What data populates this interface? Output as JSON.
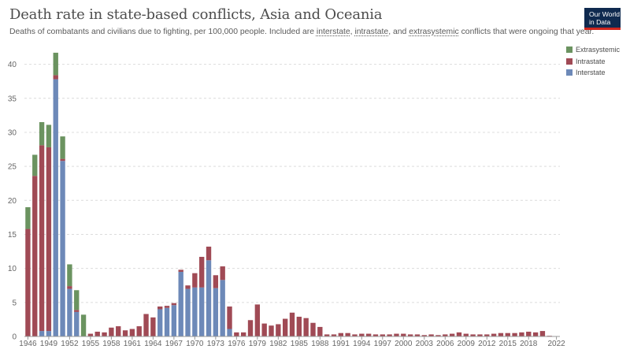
{
  "header": {
    "title": "Death rate in state-based conflicts, Asia and Oceania",
    "subtitle_pre": "Deaths of combatants and civilians due to fighting, per 100,000 people. Included are ",
    "link_interstate": "interstate",
    "sep1": ", ",
    "link_intrastate": "intrastate",
    "sep2": ", and ",
    "link_extrasystemic": "extrasystemic",
    "subtitle_post": " conflicts that were ongoing that year."
  },
  "logo": {
    "line1": "Our World",
    "line2": "in Data"
  },
  "colors": {
    "Interstate": "#6d89b8",
    "Intrastate": "#a04a55",
    "Extrasystemic": "#6b9360"
  },
  "chart_data": {
    "type": "bar",
    "stacked": true,
    "x": [
      1946,
      1947,
      1948,
      1949,
      1950,
      1951,
      1952,
      1953,
      1954,
      1955,
      1956,
      1957,
      1958,
      1959,
      1960,
      1961,
      1962,
      1963,
      1964,
      1965,
      1966,
      1967,
      1968,
      1969,
      1970,
      1971,
      1972,
      1973,
      1974,
      1975,
      1976,
      1977,
      1978,
      1979,
      1980,
      1981,
      1982,
      1983,
      1984,
      1985,
      1986,
      1987,
      1988,
      1989,
      1990,
      1991,
      1992,
      1993,
      1994,
      1995,
      1996,
      1997,
      1998,
      1999,
      2000,
      2001,
      2002,
      2003,
      2004,
      2005,
      2006,
      2007,
      2008,
      2009,
      2010,
      2011,
      2012,
      2013,
      2014,
      2015,
      2016,
      2017,
      2018,
      2019,
      2020,
      2021,
      2022
    ],
    "x_ticks": [
      1946,
      1949,
      1952,
      1955,
      1958,
      1961,
      1964,
      1967,
      1970,
      1973,
      1976,
      1979,
      1982,
      1985,
      1988,
      1991,
      1994,
      1997,
      2000,
      2003,
      2006,
      2009,
      2012,
      2015,
      2018,
      2022
    ],
    "y_ticks": [
      0,
      5,
      10,
      15,
      20,
      25,
      30,
      35,
      40
    ],
    "ylim": [
      0,
      42.5
    ],
    "grid": "horizontal dotted",
    "legend_position": "top-right",
    "series": [
      {
        "name": "Interstate",
        "values": [
          0,
          0,
          0.8,
          0.8,
          37.8,
          25.8,
          7.0,
          3.6,
          0,
          0,
          0,
          0,
          0,
          0,
          0,
          0,
          0,
          0,
          0,
          4.0,
          4.2,
          4.6,
          9.5,
          7.0,
          7.2,
          7.2,
          11.2,
          7.1,
          8.3,
          1.1,
          0,
          0,
          0,
          0,
          0,
          0,
          0,
          0,
          0,
          0,
          0,
          0,
          0,
          0,
          0,
          0,
          0,
          0,
          0,
          0,
          0,
          0,
          0,
          0,
          0,
          0,
          0,
          0,
          0,
          0,
          0,
          0,
          0,
          0,
          0,
          0,
          0,
          0,
          0,
          0,
          0,
          0,
          0,
          0,
          0,
          0,
          0
        ]
      },
      {
        "name": "Intrastate",
        "values": [
          15.8,
          23.6,
          27.3,
          27.0,
          0.6,
          0.3,
          0.4,
          0.3,
          0,
          0.4,
          0.7,
          0.6,
          1.3,
          1.5,
          0.9,
          1.1,
          1.5,
          3.3,
          2.8,
          0.4,
          0.3,
          0.3,
          0.3,
          0.5,
          2.1,
          4.5,
          2.0,
          1.9,
          2.0,
          3.3,
          0.6,
          0.6,
          2.4,
          4.7,
          1.9,
          1.6,
          1.8,
          2.6,
          3.5,
          2.9,
          2.7,
          2.0,
          1.4,
          0.3,
          0.3,
          0.5,
          0.5,
          0.3,
          0.4,
          0.4,
          0.3,
          0.3,
          0.3,
          0.4,
          0.4,
          0.3,
          0.3,
          0.2,
          0.3,
          0.2,
          0.3,
          0.4,
          0.6,
          0.4,
          0.3,
          0.3,
          0.3,
          0.4,
          0.5,
          0.5,
          0.5,
          0.6,
          0.7,
          0.6,
          0.8,
          0.1,
          0
        ]
      },
      {
        "name": "Extrasystemic",
        "values": [
          3.2,
          3.1,
          3.4,
          3.3,
          3.3,
          3.3,
          3.2,
          2.9,
          3.2,
          0,
          0,
          0,
          0,
          0,
          0,
          0,
          0,
          0,
          0,
          0,
          0,
          0,
          0,
          0,
          0,
          0,
          0,
          0,
          0,
          0,
          0,
          0,
          0,
          0,
          0,
          0,
          0,
          0,
          0,
          0,
          0,
          0,
          0,
          0,
          0,
          0,
          0,
          0,
          0,
          0,
          0,
          0,
          0,
          0,
          0,
          0,
          0,
          0,
          0,
          0,
          0,
          0,
          0,
          0,
          0,
          0,
          0,
          0,
          0,
          0,
          0,
          0,
          0,
          0,
          0,
          0,
          0
        ]
      }
    ]
  }
}
